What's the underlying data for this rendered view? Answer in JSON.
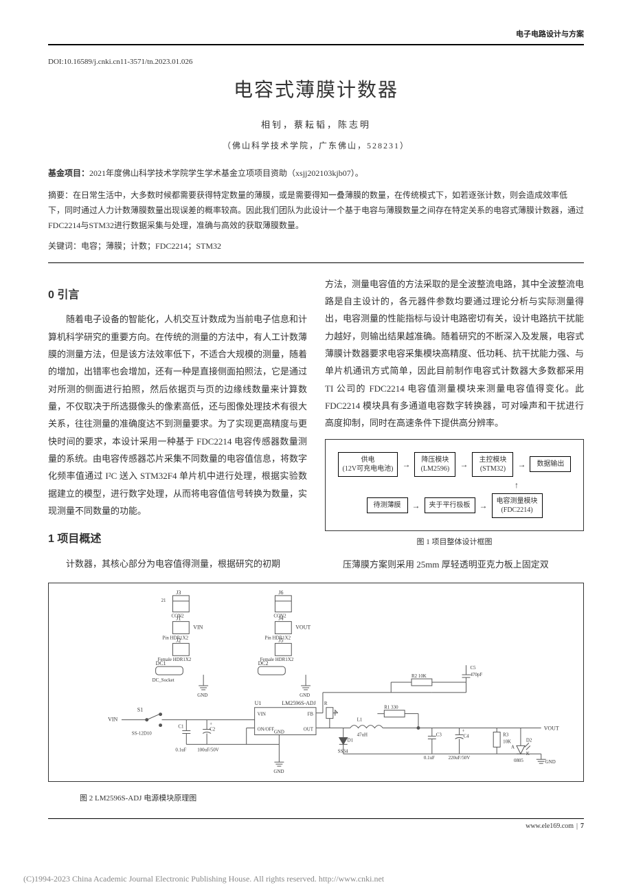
{
  "header": {
    "category": "电子电路设计与方案"
  },
  "doi": "DOI:10.16589/j.cnki.cn11-3571/tn.2023.01.026",
  "title": "电容式薄膜计数器",
  "authors": "相钊，蔡耘韬，陈志明",
  "affiliation": "（佛山科学技术学院，广东佛山，528231）",
  "funding": {
    "label": "基金项目：",
    "text": "2021年度佛山科学技术学院学生学术基金立项项目资助（xsjj202103kjb07）。"
  },
  "abstract": {
    "label": "摘要：",
    "text": "在日常生活中，大多数时候都需要获得特定数量的薄膜，或是需要得知一叠薄膜的数量，在传统模式下，如若逐张计数，则会造成效率低下，同时通过人力计数薄膜数量出现误差的概率较高。因此我们团队为此设计一个基于电容与薄膜数量之间存在特定关系的电容式薄膜计数器，通过FDC2214与STM32进行数据采集与处理，准确与高效的获取薄膜数量。"
  },
  "keywords": {
    "label": "关键词：",
    "text": "电容；薄膜；计数；FDC2214；STM32"
  },
  "section0": {
    "heading": "0 引言",
    "p1": "随着电子设备的智能化，人机交互计数成为当前电子信息和计算机科学研究的重要方向。在传统的测量的方法中，有人工计数薄膜的测量方法，但是该方法效率低下，不适合大规模的测量，随着的增加，出错率也会增加，还有一种是直接侧面拍照法，它是通过对所测的侧面进行拍照，然后依据页与页的边缘线数量来计算数量，不仅取决于所选摄像头的像素高低，还与图像处理技术有很大关系，往往测量的准确度达不到测量要求。为了实现更高精度与更快时间的要求，本设计采用一种基于 FDC2214 电容传感器数量测量的系统。由电容传感器芯片采集不同数量的电容值信息，将数字化频率值通过 I²C 送入 STM32F4 单片机中进行处理，根据实验数据建立的模型，进行数字处理，从而将电容值信号转换为数量，实现测量不同数量的功能。"
  },
  "section1": {
    "heading": "1 项目概述",
    "p1": "计数器，其核心部分为电容值得测量，根据研究的初期"
  },
  "right_col": {
    "p1": "方法，测量电容值的方法采取的是全波整流电路，其中全波整流电路是自主设计的，各元器件参数均要通过理论分析与实际测量得出，电容测量的性能指标与设计电路密切有关，设计电路抗干扰能力越好，则输出结果越准确。随着研究的不断深入及发展，电容式薄膜计数器要求电容采集模块高精度、低功耗、抗干扰能力强、与单片机通讯方式简单，因此目前制作电容式计数器大多数都采用 TI 公司的 FDC2214 电容值测量模块来测量电容值得变化。此 FDC2214 模块具有多通道电容数字转换器，可对噪声和干扰进行高度抑制，同时在高速条件下提供高分辨率。",
    "p2": "压薄膜方案则采用 25mm 厚轻透明亚克力板上固定双"
  },
  "fig1": {
    "nodes": {
      "power": "供电\n(12V可充电电池)",
      "buck": "降压模块\n(LM2596)",
      "mcu": "主控模块\n(STM32)",
      "out": "数据输出",
      "film": "待测薄膜",
      "plate": "夹于平行极板",
      "cap": "电容测量模块\n(FDC2214)"
    },
    "caption": "图 1   项目整体设计框图"
  },
  "fig2": {
    "caption": "图 2   LM2596S-ADJ 电源模块原理图",
    "schematic": {
      "colors": {
        "wire": "#555555",
        "text": "#333333",
        "bg": "#ffffff"
      },
      "font_size": 8,
      "labels": {
        "J3": "J3",
        "J6": "J6",
        "J1": "J1",
        "J4": "J4",
        "J2": "J2",
        "J5": "J5",
        "CON2a": "CON2",
        "CON2b": "CON2",
        "PinHDRa": "Pin HDR1X2",
        "PinHDRb": "Pin HDR1X2",
        "FemHDRa": "Female HDR1X2",
        "FemHDRb": "Female HDR1X2",
        "DC1": "DC1",
        "DC2": "DC2",
        "DCSock": "DC_Socket",
        "VINleft": "VIN",
        "VOUTtop": "VOUT",
        "VOUTright": "VOUT",
        "GND": "GND",
        "S1": "S1",
        "SS12D10": "SS-12D10",
        "C1": "C1",
        "C1v": "0.1uF",
        "C2": "C2",
        "C2v": "100uF/50V",
        "U1": "U1",
        "U1p": "LM2596S-ADJ",
        "U1_VIN": "VIN",
        "U1_ONOFF": "ON/OFF",
        "U1_GND": "GND",
        "U1_FB": "FB",
        "U1_OUT": "OUT",
        "L1": "L1",
        "L1v": "47uH",
        "D1": "D1",
        "D1p": "SS34",
        "C3": "C3",
        "C3v": "0.1uF",
        "C4": "C4",
        "C4v": "220uF/50V",
        "C5": "C5",
        "C5v": "470pF",
        "R1": "R1 330",
        "R2": "R2  10K",
        "R3": "R3",
        "R3v": "10K",
        "D2": "D2",
        "D2a": "A",
        "D2k": "K",
        "D2p": "0805",
        "R_adj": "R",
        "pins12": "2\n1"
      }
    }
  },
  "footer": {
    "url": "www.ele169.com",
    "page": "7"
  },
  "copyright": "(C)1994-2023 China Academic Journal Electronic Publishing House. All rights reserved.    http://www.cnki.net"
}
